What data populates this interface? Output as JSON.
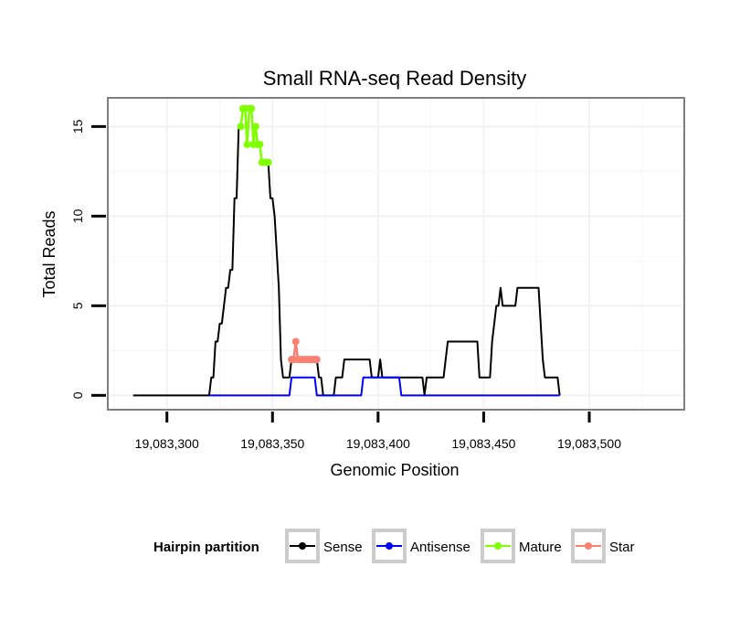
{
  "chart_data": {
    "type": "line",
    "title": "Small RNA-seq Read Density",
    "xlabel": "Genomic Position",
    "ylabel": "Total Reads",
    "xlim": [
      19083272,
      19083545
    ],
    "ylim": [
      -0.8,
      16.6
    ],
    "x_ticks": [
      19083300,
      19083350,
      19083400,
      19083450,
      19083500
    ],
    "x_tick_labels": [
      "19,083,300",
      "19,083,350",
      "19,083,400",
      "19,083,450",
      "19,083,500"
    ],
    "y_ticks": [
      0,
      5,
      10,
      15
    ],
    "y_tick_labels": [
      "0",
      "5",
      "10",
      "15"
    ],
    "grid": true,
    "legend": {
      "title": "Hairpin partition",
      "placement": "bottom",
      "entries": [
        {
          "name": "Sense",
          "color": "#000000"
        },
        {
          "name": "Antisense",
          "color": "#0000ff"
        },
        {
          "name": "Mature",
          "color": "#7fff00"
        },
        {
          "name": "Star",
          "color": "#fa8072"
        }
      ]
    },
    "series": [
      {
        "name": "Sense",
        "color": "#000000",
        "points": [
          [
            19083284,
            0
          ],
          [
            19083320,
            0
          ],
          [
            19083321,
            1
          ],
          [
            19083322,
            1
          ],
          [
            19083323,
            3
          ],
          [
            19083324,
            3
          ],
          [
            19083325,
            4
          ],
          [
            19083326,
            4
          ],
          [
            19083327,
            5
          ],
          [
            19083328,
            6
          ],
          [
            19083329,
            6
          ],
          [
            19083330,
            7
          ],
          [
            19083331,
            7
          ],
          [
            19083332,
            11
          ],
          [
            19083333,
            11
          ],
          [
            19083334,
            15
          ],
          [
            19083335,
            15
          ],
          [
            19083336,
            16
          ],
          [
            19083337,
            16
          ],
          [
            19083338,
            14
          ],
          [
            19083339,
            16
          ],
          [
            19083340,
            16
          ],
          [
            19083341,
            14
          ],
          [
            19083342,
            15
          ],
          [
            19083343,
            14
          ],
          [
            19083344,
            14
          ],
          [
            19083345,
            13
          ],
          [
            19083346,
            13
          ],
          [
            19083347,
            13
          ],
          [
            19083348,
            13
          ],
          [
            19083349,
            11
          ],
          [
            19083350,
            11
          ],
          [
            19083351,
            10
          ],
          [
            19083352,
            8
          ],
          [
            19083353,
            6
          ],
          [
            19083354,
            2
          ],
          [
            19083355,
            1
          ],
          [
            19083356,
            1
          ],
          [
            19083357,
            1
          ],
          [
            19083358,
            1
          ],
          [
            19083359,
            2
          ],
          [
            19083360,
            2
          ],
          [
            19083361,
            3
          ],
          [
            19083362,
            2
          ],
          [
            19083363,
            2
          ],
          [
            19083364,
            2
          ],
          [
            19083365,
            2
          ],
          [
            19083366,
            2
          ],
          [
            19083367,
            2
          ],
          [
            19083368,
            2
          ],
          [
            19083369,
            2
          ],
          [
            19083370,
            2
          ],
          [
            19083371,
            2
          ],
          [
            19083372,
            1
          ],
          [
            19083373,
            1
          ],
          [
            19083374,
            0
          ],
          [
            19083375,
            0
          ],
          [
            19083376,
            0
          ],
          [
            19083377,
            0
          ],
          [
            19083378,
            0
          ],
          [
            19083379,
            0
          ],
          [
            19083380,
            1
          ],
          [
            19083381,
            1
          ],
          [
            19083382,
            1
          ],
          [
            19083383,
            1
          ],
          [
            19083384,
            2
          ],
          [
            19083396,
            2
          ],
          [
            19083397,
            1
          ],
          [
            19083400,
            1
          ],
          [
            19083401,
            2
          ],
          [
            19083402,
            1
          ],
          [
            19083405,
            1
          ],
          [
            19083406,
            1
          ],
          [
            19083421,
            1
          ],
          [
            19083422,
            0
          ],
          [
            19083423,
            1
          ],
          [
            19083431,
            1
          ],
          [
            19083432,
            2
          ],
          [
            19083433,
            3
          ],
          [
            19083447,
            3
          ],
          [
            19083448,
            1
          ],
          [
            19083453,
            1
          ],
          [
            19083454,
            3
          ],
          [
            19083455,
            4
          ],
          [
            19083456,
            5
          ],
          [
            19083457,
            5
          ],
          [
            19083458,
            6
          ],
          [
            19083459,
            5
          ],
          [
            19083460,
            5
          ],
          [
            19083465,
            5
          ],
          [
            19083466,
            6
          ],
          [
            19083476,
            6
          ],
          [
            19083477,
            4
          ],
          [
            19083478,
            2
          ],
          [
            19083479,
            1
          ],
          [
            19083485,
            1
          ],
          [
            19083486,
            0
          ]
        ]
      },
      {
        "name": "Antisense",
        "color": "#0000ff",
        "points": [
          [
            19083320,
            0
          ],
          [
            19083358,
            0
          ],
          [
            19083359,
            1
          ],
          [
            19083370,
            1
          ],
          [
            19083371,
            0
          ],
          [
            19083392,
            0
          ],
          [
            19083393,
            1
          ],
          [
            19083410,
            1
          ],
          [
            19083411,
            0
          ],
          [
            19083486,
            0
          ]
        ]
      },
      {
        "name": "Mature",
        "color": "#7fff00",
        "points": [
          [
            19083335,
            15
          ],
          [
            19083336,
            16
          ],
          [
            19083337,
            16
          ],
          [
            19083338,
            14
          ],
          [
            19083339,
            16
          ],
          [
            19083340,
            16
          ],
          [
            19083341,
            14
          ],
          [
            19083342,
            15
          ],
          [
            19083343,
            14
          ],
          [
            19083344,
            14
          ],
          [
            19083345,
            13
          ],
          [
            19083346,
            13
          ],
          [
            19083347,
            13
          ],
          [
            19083348,
            13
          ]
        ]
      },
      {
        "name": "Star",
        "color": "#fa8072",
        "points": [
          [
            19083359,
            2
          ],
          [
            19083360,
            2
          ],
          [
            19083361,
            3
          ],
          [
            19083362,
            2
          ],
          [
            19083363,
            2
          ],
          [
            19083364,
            2
          ],
          [
            19083365,
            2
          ],
          [
            19083366,
            2
          ],
          [
            19083367,
            2
          ],
          [
            19083368,
            2
          ],
          [
            19083369,
            2
          ],
          [
            19083370,
            2
          ],
          [
            19083371,
            2
          ]
        ]
      }
    ]
  }
}
